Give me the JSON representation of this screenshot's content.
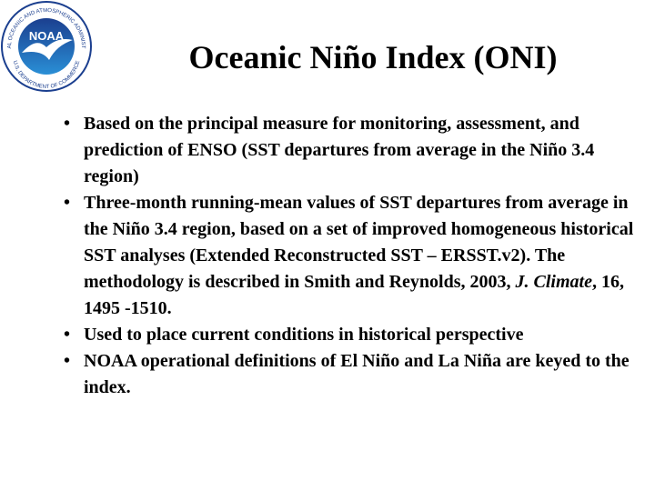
{
  "logo": {
    "abbreviation": "NOAA",
    "agency": "NATIONAL OCEANIC AND ATMOSPHERIC ADMINISTRATION",
    "department": "U.S. DEPARTMENT OF COMMERCE"
  },
  "slide": {
    "title": "Oceanic Niño Index (ONI)",
    "bullets": [
      [
        "Based on the principal measure for monitoring, assessment, and prediction of ENSO (SST departures from average in the Niño 3.4 region)"
      ],
      [
        "Three-month running-mean values of SST departures from average in the Niño 3.4 region, based on a set of improved homogeneous historical SST analyses (Extended Reconstructed SST – ERSST.v2). The methodology is described in Smith and Reynolds, 2003, ",
        "J. Climate",
        ", 16, 1495 -1510."
      ],
      [
        "Used to place current conditions in historical perspective"
      ],
      [
        "NOAA operational definitions of El Niño and La Niña are keyed to the index."
      ]
    ]
  }
}
